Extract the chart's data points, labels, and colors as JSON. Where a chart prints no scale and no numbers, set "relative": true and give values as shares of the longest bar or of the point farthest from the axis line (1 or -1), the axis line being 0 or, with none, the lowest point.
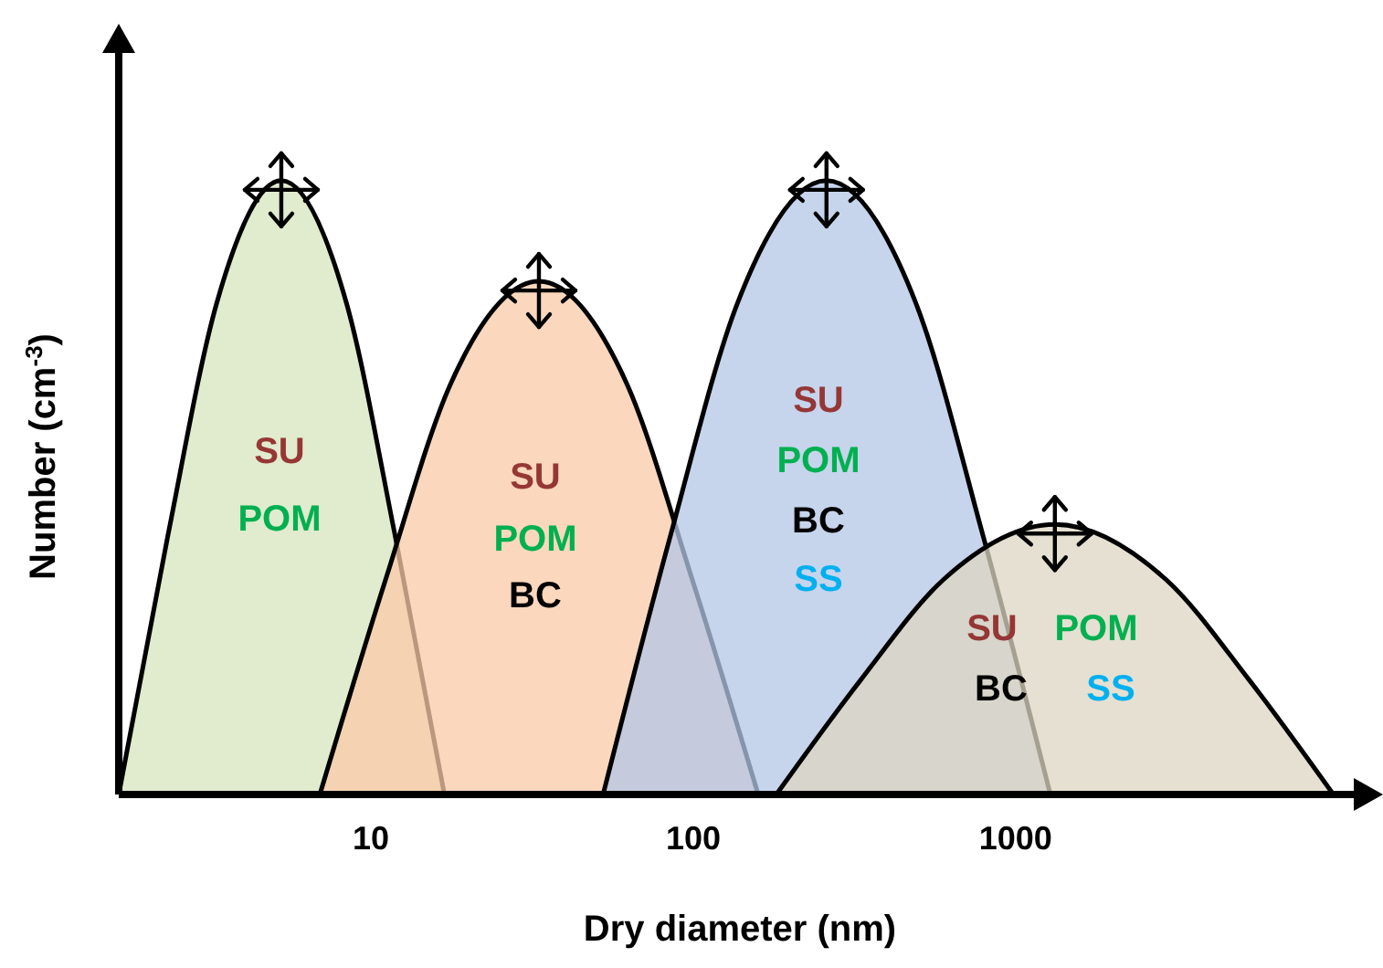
{
  "chart_data": {
    "type": "area",
    "relative": true,
    "log": "x",
    "xlim": [
      1.65,
      11800
    ],
    "xticks": [
      10,
      100,
      1000
    ],
    "tick_labels": "x",
    "xlabel": "Dry diameter (nm)",
    "ylabel": "Number (cm$^{-3}$)",
    "series": [
      {
        "color": "#d7e4bd",
        "x": [
          1.65,
          2.34,
          3.32,
          5.27,
          8.4,
          11.9,
          16.9
        ],
        "values": [
          0,
          0.42,
          0.8,
          1,
          0.8,
          0.42,
          0
        ]
      },
      {
        "color": "#f9c9a8",
        "x": [
          6.94,
          11.1,
          17.7,
          33.2,
          62.1,
          99.3,
          159
        ],
        "values": [
          0,
          0.35,
          0.67,
          0.836,
          0.67,
          0.35,
          0
        ]
      },
      {
        "color": "#b3c6e5",
        "x": [
          52.5,
          84.8,
          137,
          259,
          491,
          794,
          1282
        ],
        "values": [
          0,
          0.42,
          0.8,
          1,
          0.8,
          0.42,
          0
        ]
      },
      {
        "color": "#dcd6c2",
        "x": [
          181,
          329,
          597,
          1324,
          2931,
          5333,
          9684
        ],
        "values": [
          0,
          0.185,
          0.35,
          0.44,
          0.35,
          0.185,
          0
        ]
      }
    ],
    "annotations": [
      "SU",
      "POM",
      "SU",
      "POM",
      "BC",
      "SU",
      "POM",
      "BC",
      "SS",
      "SU",
      "POM",
      "BC",
      "SS"
    ]
  }
}
